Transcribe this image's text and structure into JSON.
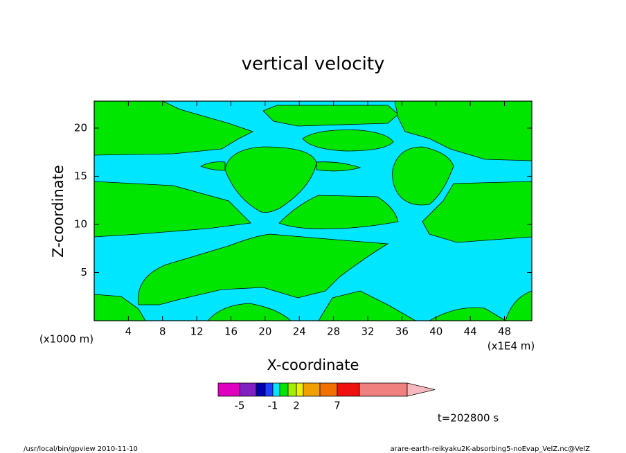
{
  "chart_data": {
    "type": "contour",
    "title": "vertical velocity",
    "x_label": "X-coordinate",
    "y_label": "Z-coordinate",
    "x_unit": "(x1E4 m)",
    "y_unit": "(x1000 m)",
    "xlim": [
      0,
      51.2
    ],
    "ylim": [
      0,
      22.8
    ],
    "xticks": [
      4,
      8,
      12,
      16,
      20,
      24,
      28,
      32,
      36,
      40,
      44,
      48
    ],
    "yticks": [
      5,
      10,
      15,
      20
    ],
    "colorbar": {
      "colors": [
        "#e000c0",
        "#8020c0",
        "#0000b0",
        "#2040ff",
        "#00e6ff",
        "#00e600",
        "#a0f000",
        "#f0f000",
        "#f0a000",
        "#f07000",
        "#f01010",
        "#f08080",
        "#f8b8c0"
      ],
      "ticks": [
        -5,
        -1,
        2,
        7
      ]
    },
    "time_label": "t=202800 s",
    "footer_left": "/usr/local/bin/gpview  2010-11-10",
    "footer_right": "arare-earth-reikyaku2K-absorbing5-noEvap_VelZ.nc@VelZ"
  }
}
